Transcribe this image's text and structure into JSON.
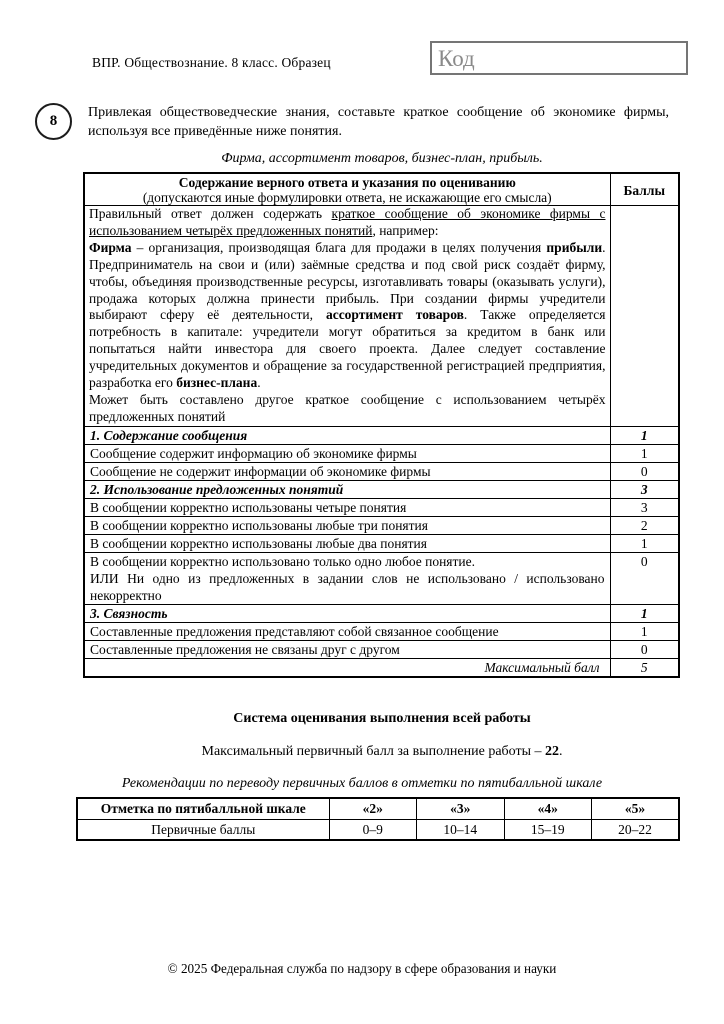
{
  "page": {
    "header_label": "ВПР. Обществознание. 8 класс. Образец",
    "code_label": "Код",
    "footer": "© 2025 Федеральная служба по надзору в сфере образования и науки"
  },
  "task": {
    "number": "8",
    "text": "Привлекая обществоведческие знания, составьте краткое сообщение об экономике фирмы, используя все приведённые ниже понятия.",
    "concepts": "Фирма, ассортимент товаров, бизнес-план, прибыль."
  },
  "rubric": {
    "header": {
      "title": "Содержание верного ответа и указания по оцениванию",
      "note": "(допускаются иные формулировки ответа, не искажающие его смысла)",
      "score": "Баллы"
    },
    "answer_segments": [
      {
        "t": "Правильный ответ должен содержать ",
        "s": ""
      },
      {
        "t": "краткое сообщение об экономике фирмы с использованием четырёх предложенных понятий",
        "s": "u"
      },
      {
        "t": ", например:\n",
        "s": ""
      },
      {
        "t": "Фирма",
        "s": "b"
      },
      {
        "t": " – организация, производящая блага для продажи в целях получения ",
        "s": ""
      },
      {
        "t": "прибыли",
        "s": "b"
      },
      {
        "t": ". Предприниматель на свои и (или) заёмные средства и под свой риск создаёт фирму, чтобы, объединяя производственные ресурсы, изготавливать товары (оказывать услуги), продажа которых должна принести прибыль. При создании фирмы учредители выбирают сферу её деятельности, ",
        "s": ""
      },
      {
        "t": "ассортимент товаров",
        "s": "b"
      },
      {
        "t": ". Также определяется потребность в капитале: учредители могут обратиться за кредитом в банк или попытаться найти инвестора для своего проекта. Далее следует составление учредительных документов и обращение за государственной регистрацией предприятия, разработка его ",
        "s": ""
      },
      {
        "t": "бизнес-плана",
        "s": "b"
      },
      {
        "t": ".\nМожет быть составлено другое краткое сообщение с использованием четырёх предложенных понятий",
        "s": ""
      }
    ],
    "rows": [
      {
        "label": "1. Содержание сообщения",
        "score": "1",
        "style": "section"
      },
      {
        "label": "Сообщение содержит информацию об экономике фирмы",
        "score": "1",
        "style": "normal"
      },
      {
        "label": "Сообщение не содержит информации об экономике фирмы",
        "score": "0",
        "style": "normal"
      },
      {
        "label": "2. Использование предложенных понятий",
        "score": "3",
        "style": "section"
      },
      {
        "label": "В сообщении корректно использованы четыре понятия",
        "score": "3",
        "style": "normal"
      },
      {
        "label": "В сообщении корректно использованы любые три понятия",
        "score": "2",
        "style": "normal"
      },
      {
        "label": "В сообщении корректно использованы любые два понятия",
        "score": "1",
        "style": "normal"
      },
      {
        "label": "В сообщении корректно использовано только одно любое понятие.\nИЛИ Ни одно из предложенных в задании слов не использовано / использовано некорректно",
        "score": "0",
        "style": "normal"
      },
      {
        "label": "3. Связность",
        "score": "1",
        "style": "section"
      },
      {
        "label": "Составленные предложения представляют собой связанное сообщение",
        "score": "1",
        "style": "normal"
      },
      {
        "label": "Составленные предложения не связаны друг с другом",
        "score": "0",
        "style": "normal"
      },
      {
        "label": "Максимальный балл",
        "score": "5",
        "style": "max"
      }
    ]
  },
  "scoring": {
    "title": "Система оценивания выполнения всей работы",
    "max_prefix": "Максимальный первичный балл за выполнение работы – ",
    "max_value": "22",
    "max_suffix": ".",
    "recommendation": "Рекомендации по переводу первичных баллов в отметки по пятибалльной шкале"
  },
  "grades": {
    "header": [
      "Отметка по пятибалльной шкале",
      "«2»",
      "«3»",
      "«4»",
      "«5»"
    ],
    "row": [
      "Первичные баллы",
      "0–9",
      "10–14",
      "15–19",
      "20–22"
    ]
  }
}
